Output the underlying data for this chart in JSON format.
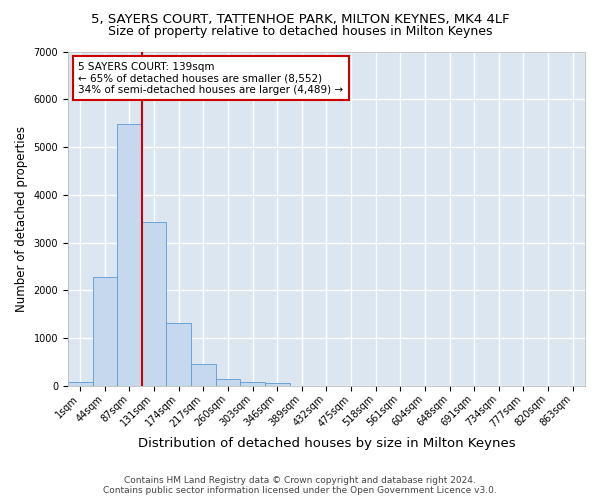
{
  "title_line1": "5, SAYERS COURT, TATTENHOE PARK, MILTON KEYNES, MK4 4LF",
  "title_line2": "Size of property relative to detached houses in Milton Keynes",
  "xlabel": "Distribution of detached houses by size in Milton Keynes",
  "ylabel": "Number of detached properties",
  "footer_line1": "Contains HM Land Registry data © Crown copyright and database right 2024.",
  "footer_line2": "Contains public sector information licensed under the Open Government Licence v3.0.",
  "annotation_line1": "5 SAYERS COURT: 139sqm",
  "annotation_line2": "← 65% of detached houses are smaller (8,552)",
  "annotation_line3": "34% of semi-detached houses are larger (4,489) →",
  "bar_color": "#c5d8ed",
  "bar_edge_color": "#5b9bd5",
  "background_color": "#dce6f1",
  "grid_color": "#ffffff",
  "figure_bg_color": "#ffffff",
  "annotation_box_color": "#ffffff",
  "annotation_box_edge_color": "#cc0000",
  "marker_line_color": "#cc0000",
  "categories": [
    "1sqm",
    "44sqm",
    "87sqm",
    "131sqm",
    "174sqm",
    "217sqm",
    "260sqm",
    "303sqm",
    "346sqm",
    "389sqm",
    "432sqm",
    "475sqm",
    "518sqm",
    "561sqm",
    "604sqm",
    "648sqm",
    "691sqm",
    "734sqm",
    "777sqm",
    "820sqm",
    "863sqm"
  ],
  "values": [
    75,
    2280,
    5480,
    3430,
    1310,
    460,
    155,
    80,
    55,
    0,
    0,
    0,
    0,
    0,
    0,
    0,
    0,
    0,
    0,
    0,
    0
  ],
  "ylim": [
    0,
    7000
  ],
  "yticks": [
    0,
    1000,
    2000,
    3000,
    4000,
    5000,
    6000,
    7000
  ],
  "marker_bin_index": 2,
  "title_fontsize": 9.5,
  "subtitle_fontsize": 9,
  "ylabel_fontsize": 8.5,
  "xlabel_fontsize": 9.5,
  "tick_fontsize": 7,
  "footer_fontsize": 6.5,
  "annotation_fontsize": 7.5
}
